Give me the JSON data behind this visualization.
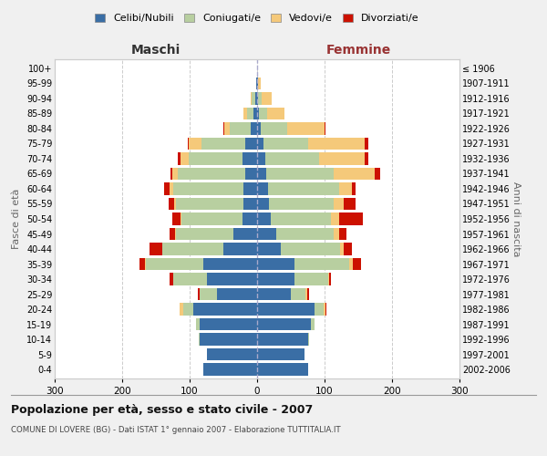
{
  "age_groups": [
    "0-4",
    "5-9",
    "10-14",
    "15-19",
    "20-24",
    "25-29",
    "30-34",
    "35-39",
    "40-44",
    "45-49",
    "50-54",
    "55-59",
    "60-64",
    "65-69",
    "70-74",
    "75-79",
    "80-84",
    "85-89",
    "90-94",
    "95-99",
    "100+"
  ],
  "birth_years": [
    "2002-2006",
    "1997-2001",
    "1992-1996",
    "1987-1991",
    "1982-1986",
    "1977-1981",
    "1972-1976",
    "1967-1971",
    "1962-1966",
    "1957-1961",
    "1952-1956",
    "1947-1951",
    "1942-1946",
    "1937-1941",
    "1932-1936",
    "1927-1931",
    "1922-1926",
    "1917-1921",
    "1912-1916",
    "1907-1911",
    "≤ 1906"
  ],
  "colors": {
    "celibe": "#3a6ea5",
    "coniugato": "#b8cfa0",
    "vedovo": "#f5c97a",
    "divorziato": "#cc1100"
  },
  "maschi": {
    "celibe": [
      80,
      75,
      85,
      85,
      95,
      60,
      75,
      80,
      50,
      35,
      22,
      20,
      20,
      18,
      22,
      18,
      10,
      5,
      3,
      1,
      0
    ],
    "coniugato": [
      0,
      0,
      2,
      5,
      15,
      25,
      50,
      85,
      90,
      85,
      90,
      100,
      105,
      100,
      80,
      65,
      30,
      10,
      5,
      1,
      0
    ],
    "vedovo": [
      0,
      0,
      0,
      0,
      5,
      0,
      0,
      1,
      1,
      2,
      2,
      3,
      5,
      8,
      12,
      18,
      8,
      5,
      2,
      0,
      0
    ],
    "divorziato": [
      0,
      0,
      0,
      0,
      0,
      3,
      5,
      8,
      18,
      8,
      12,
      8,
      8,
      3,
      3,
      2,
      2,
      0,
      0,
      0,
      0
    ]
  },
  "femmine": {
    "nubile": [
      75,
      70,
      75,
      80,
      85,
      50,
      55,
      55,
      35,
      28,
      20,
      18,
      16,
      14,
      12,
      10,
      5,
      3,
      2,
      1,
      0
    ],
    "coniugata": [
      0,
      0,
      2,
      5,
      14,
      22,
      50,
      82,
      88,
      85,
      90,
      95,
      105,
      100,
      80,
      65,
      40,
      12,
      5,
      1,
      0
    ],
    "vedova": [
      0,
      0,
      0,
      0,
      2,
      2,
      2,
      5,
      5,
      8,
      12,
      15,
      20,
      60,
      68,
      85,
      55,
      25,
      15,
      3,
      0
    ],
    "divorziata": [
      0,
      0,
      0,
      0,
      2,
      3,
      3,
      12,
      12,
      12,
      35,
      18,
      5,
      8,
      5,
      5,
      2,
      0,
      0,
      0,
      0
    ]
  },
  "xlim": 300,
  "title": "Popolazione per età, sesso e stato civile - 2007",
  "subtitle": "COMUNE DI LOVERE (BG) - Dati ISTAT 1° gennaio 2007 - Elaborazione TUTTITALIA.IT",
  "ylabel_left": "Fasce di età",
  "ylabel_right": "Anni di nascita",
  "xlabel_left": "Maschi",
  "xlabel_right": "Femmine",
  "xlabel_right_color": "#993333",
  "legend_labels": [
    "Celibi/Nubili",
    "Coniugati/e",
    "Vedovi/e",
    "Divorziati/e"
  ],
  "bg_color": "#f0f0f0",
  "plot_bg": "#ffffff"
}
